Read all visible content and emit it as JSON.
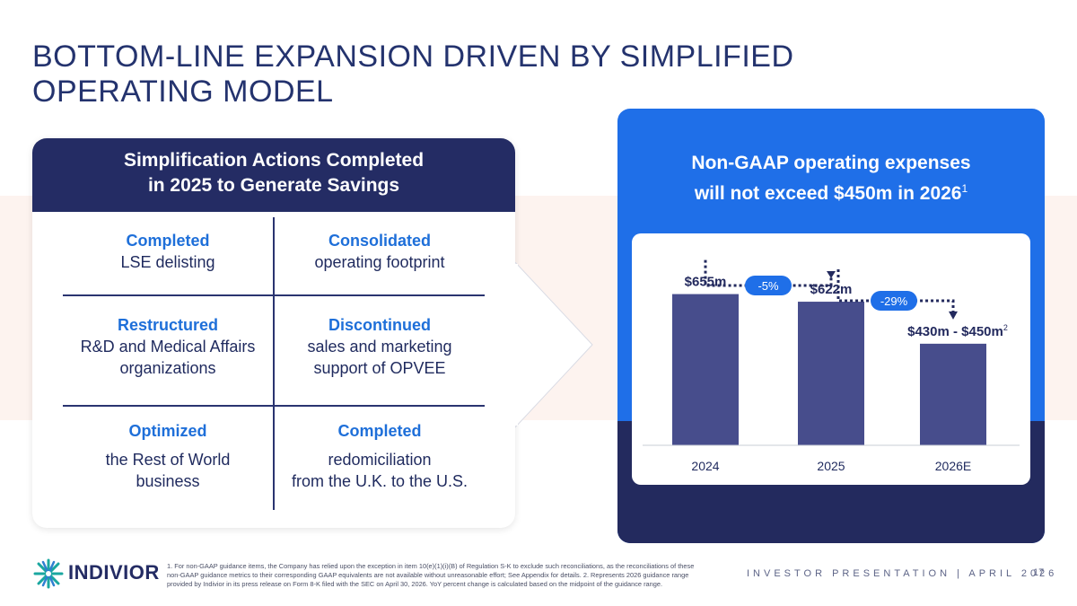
{
  "slide": {
    "title_line1": "BOTTOM-LINE EXPANSION DRIVEN BY SIMPLIFIED",
    "title_line2": "OPERATING MODEL"
  },
  "left": {
    "header_line1": "Simplification Actions Completed",
    "header_line2": "in 2025 to Generate Savings",
    "cells": [
      {
        "head": "Completed",
        "text1": "LSE delisting",
        "text2": ""
      },
      {
        "head": "Consolidated",
        "text1": "operating footprint",
        "text2": ""
      },
      {
        "head": "Restructured",
        "text1": "R&D and Medical Affairs",
        "text2": "organizations"
      },
      {
        "head": "Discontinued",
        "text1": "sales and marketing",
        "text2": "support of OPVEE"
      },
      {
        "head": "Optimized",
        "text1": "the Rest of World",
        "text2": "business"
      },
      {
        "head": "Completed",
        "text1": "redomiciliation",
        "text2": "from the U.K. to the U.S."
      }
    ]
  },
  "right": {
    "header_line1": "Non-GAAP operating expenses",
    "header_line2": "will not exceed $450m in 2026",
    "header_sup": "1"
  },
  "chart_data": {
    "type": "bar",
    "categories": [
      "2024",
      "2025",
      "2026E"
    ],
    "values": [
      655,
      622,
      440
    ],
    "value_labels": [
      "$655m",
      "$622m",
      "$430m - $450m"
    ],
    "value_label_sups": [
      "",
      "",
      "2"
    ],
    "ylim": [
      0,
      700
    ],
    "annotations": [
      "-5%",
      "-29%"
    ],
    "colors": {
      "bar": "#474d8c",
      "arrow": "#232a5e",
      "badge": "#1f6fe8"
    }
  },
  "footer": {
    "logo_text": "INDIVIOR",
    "footnote": "1. For non-GAAP guidance items, the Company has relied upon the exception in item 10(e)(1)(i)(B) of Regulation S-K to exclude such reconciliations, as the reconciliations of these non-GAAP guidance metrics to their corresponding GAAP equivalents are not available without unreasonable effort; See Appendix for details. 2. Represents 2026 guidance range provided by Indivior in its press release on Form 8-K filed with the SEC on April 30, 2026. YoY percent change is calculated based on the midpoint of the guidance range.",
    "presentation": "INVESTOR PRESENTATION | APRIL 2026",
    "page_number": "17"
  }
}
